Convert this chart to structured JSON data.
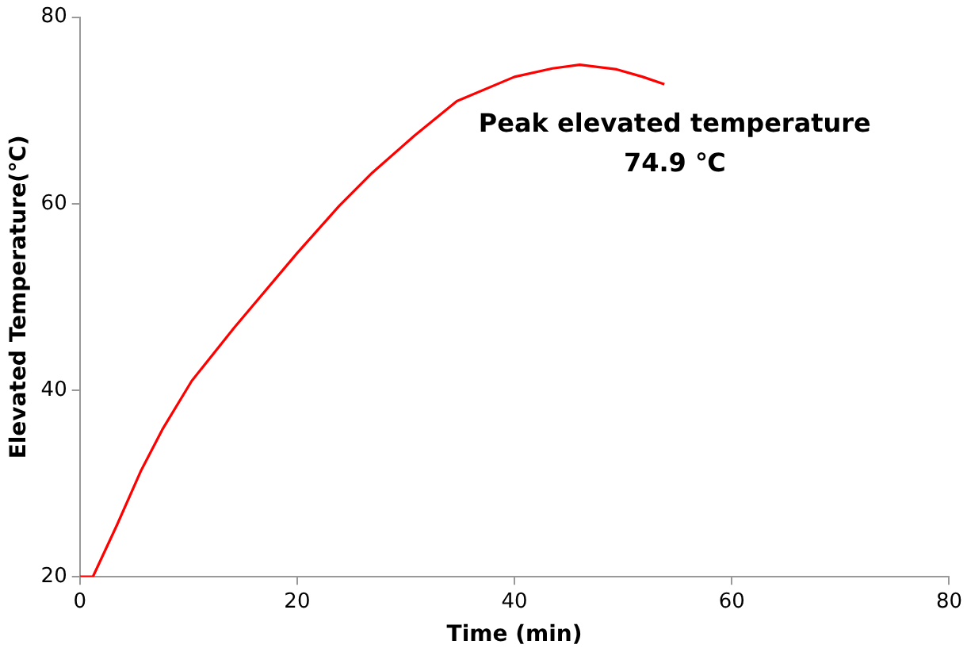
{
  "chart_data": {
    "type": "line",
    "xlabel": "Time (min)",
    "ylabel": "Elevated Temperature(℃)",
    "x": [
      0,
      1.2,
      3.4,
      5.6,
      7.6,
      10.3,
      14.2,
      20,
      23.9,
      26.9,
      30.8,
      34.7,
      40,
      43.5,
      46,
      49.4,
      51.8,
      53.8
    ],
    "series": [
      {
        "color": "#ff0000",
        "values": [
          20,
          20,
          25.5,
          31.3,
          35.8,
          41,
          46.7,
          54.7,
          59.8,
          63.3,
          67.3,
          71,
          73.6,
          74.5,
          74.9,
          74.4,
          73.6,
          72.8
        ]
      }
    ],
    "xlim": [
      0,
      80
    ],
    "xticks": [
      0,
      20,
      40,
      60,
      80
    ],
    "ylim": [
      20,
      80
    ],
    "yticks": [
      20,
      40,
      60,
      80
    ],
    "grid": false,
    "legend": false,
    "marker": "none",
    "line_style": "solid",
    "annotations": [
      {
        "text": "Peak elevated temperature\n74.9 ℃",
        "x": 46,
        "y": 74.9
      }
    ]
  }
}
